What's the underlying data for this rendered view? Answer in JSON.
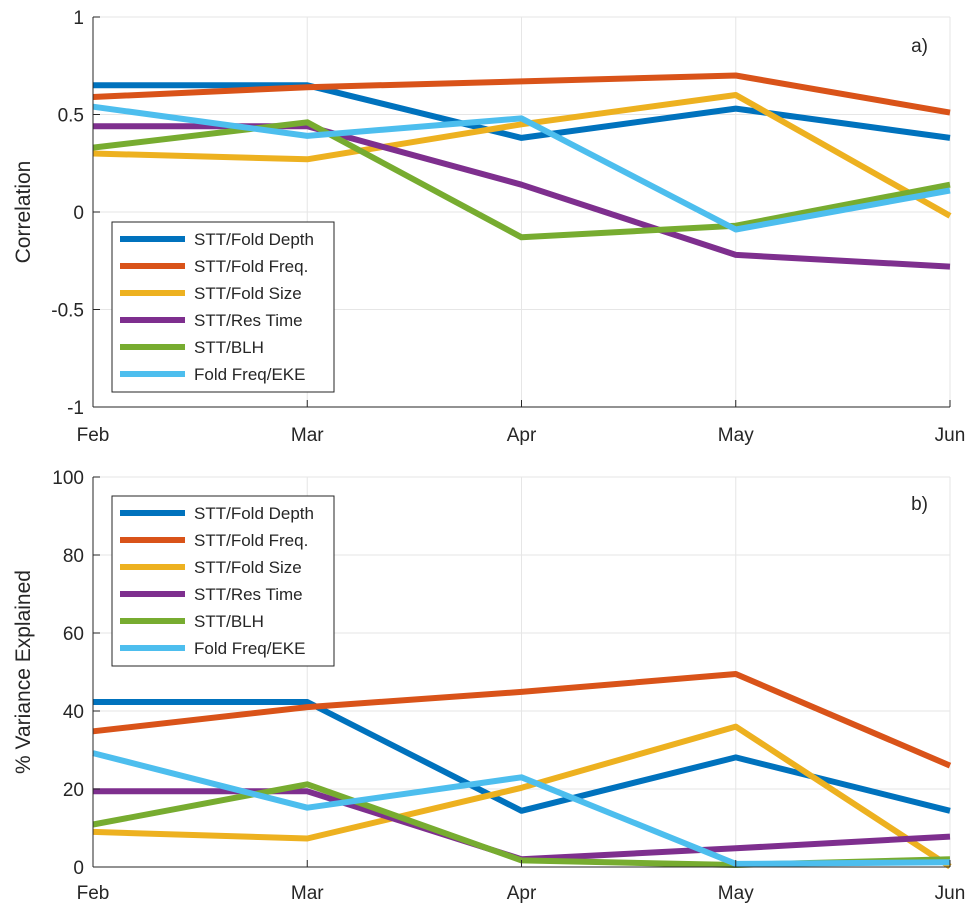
{
  "chart_data": [
    {
      "type": "line",
      "panel_label": "a)",
      "xlabel": "",
      "ylabel": "Correlation",
      "categories": [
        "Feb",
        "Mar",
        "Apr",
        "May",
        "Jun"
      ],
      "ylim": [
        -1,
        1
      ],
      "yticks": [
        -1,
        -0.5,
        0,
        0.5,
        1
      ],
      "ytick_labels": [
        "-1",
        "-0.5",
        "0",
        "0.5",
        "1"
      ],
      "grid": true,
      "legend_position": "bottom-left",
      "series": [
        {
          "name": "STT/Fold Depth",
          "color": "#0072BD",
          "values": [
            0.65,
            0.65,
            0.38,
            0.53,
            0.38
          ]
        },
        {
          "name": "STT/Fold Freq.",
          "color": "#D95319",
          "values": [
            0.59,
            0.64,
            0.67,
            0.7,
            0.51
          ]
        },
        {
          "name": "STT/Fold Size",
          "color": "#EDB120",
          "values": [
            0.3,
            0.27,
            0.45,
            0.6,
            -0.02
          ]
        },
        {
          "name": "STT/Res Time",
          "color": "#7E2F8E",
          "values": [
            0.44,
            0.44,
            0.14,
            -0.22,
            -0.28
          ]
        },
        {
          "name": "STT/BLH",
          "color": "#77AC30",
          "values": [
            0.33,
            0.46,
            -0.13,
            -0.07,
            0.14
          ]
        },
        {
          "name": "Fold Freq/EKE",
          "color": "#4DBEEE",
          "values": [
            0.54,
            0.39,
            0.48,
            -0.09,
            0.11
          ]
        }
      ]
    },
    {
      "type": "line",
      "panel_label": "b)",
      "xlabel": "",
      "ylabel": "% Variance Explained",
      "categories": [
        "Feb",
        "Mar",
        "Apr",
        "May",
        "Jun"
      ],
      "ylim": [
        0,
        100
      ],
      "yticks": [
        0,
        20,
        40,
        60,
        80,
        100
      ],
      "ytick_labels": [
        "0",
        "20",
        "40",
        "60",
        "80",
        "100"
      ],
      "grid": true,
      "legend_position": "top-left",
      "series": [
        {
          "name": "STT/Fold Depth",
          "color": "#0072BD",
          "values": [
            42.3,
            42.3,
            14.4,
            28.1,
            14.4
          ]
        },
        {
          "name": "STT/Fold Freq.",
          "color": "#D95319",
          "values": [
            34.8,
            41.0,
            44.9,
            49.5,
            26.0
          ]
        },
        {
          "name": "STT/Fold Size",
          "color": "#EDB120",
          "values": [
            9.0,
            7.3,
            20.3,
            36.0,
            0.1
          ]
        },
        {
          "name": "STT/Res Time",
          "color": "#7E2F8E",
          "values": [
            19.4,
            19.4,
            2.0,
            4.8,
            7.8
          ]
        },
        {
          "name": "STT/BLH",
          "color": "#77AC30",
          "values": [
            10.9,
            21.2,
            1.7,
            0.5,
            2.0
          ]
        },
        {
          "name": "Fold Freq/EKE",
          "color": "#4DBEEE",
          "values": [
            29.2,
            15.2,
            23.0,
            0.8,
            1.2
          ]
        }
      ]
    }
  ]
}
